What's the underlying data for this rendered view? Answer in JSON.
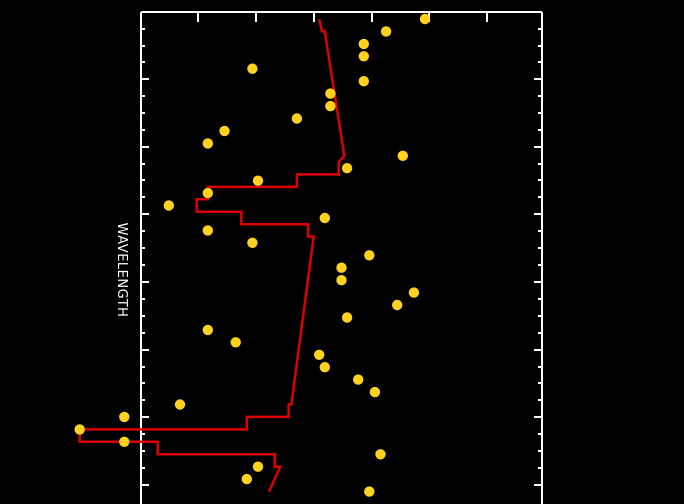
{
  "chart_data": {
    "type": "scatter",
    "orientation": "rotated-90",
    "ylabel": "WAVELENGTH",
    "xlabel": "",
    "title": "",
    "grid": false,
    "colors": {
      "background": "#000000",
      "axes": "#ffffff",
      "line": "#dd0000",
      "points": "#ffd21f"
    },
    "wavelength_range": [
      0,
      39
    ],
    "flux_range": [
      -1.2,
      6
    ],
    "series": [
      {
        "kind": "points",
        "x": [
          0,
          1,
          2,
          3,
          4,
          5,
          6,
          7,
          8,
          9,
          10,
          11,
          12,
          13,
          14,
          15,
          16,
          17,
          18,
          19,
          20,
          21,
          22,
          23,
          24,
          25,
          26,
          27,
          28,
          29,
          30,
          31,
          32,
          33,
          34,
          35,
          36,
          37,
          38
        ],
        "y": [
          3.9,
          3.2,
          2.8,
          2.8,
          0.8,
          2.8,
          2.2,
          2.2,
          1.6,
          0.3,
          0.0,
          3.5,
          2.5,
          0.9,
          0.0,
          -0.7,
          2.1,
          0.0,
          0.8,
          2.9,
          2.4,
          2.4,
          3.7,
          3.4,
          2.5,
          0.0,
          0.5,
          2.0,
          2.1,
          2.7,
          3.0,
          -0.5,
          -1.5,
          -2.3,
          -1.5,
          3.1,
          0.9,
          0.7,
          2.9
        ]
      },
      {
        "kind": "step-line",
        "segments": [
          {
            "x": [
              0,
              1
            ],
            "y": [
              2.0,
              2.05
            ]
          },
          {
            "x": [
              1,
              11
            ],
            "y": [
              2.1,
              2.45
            ]
          },
          {
            "x": [
              11.5,
              12.5
            ],
            "y": [
              2.35,
              2.35
            ]
          },
          {
            "x": [
              12.5,
              13.5
            ],
            "y": [
              1.6,
              1.6
            ]
          },
          {
            "x": [
              13.5,
              14.5
            ],
            "y": [
              0.0,
              0.0
            ]
          },
          {
            "x": [
              14.5,
              15.5
            ],
            "y": [
              -0.2,
              -0.2
            ]
          },
          {
            "x": [
              15.5,
              16.5
            ],
            "y": [
              0.6,
              0.6
            ]
          },
          {
            "x": [
              16.5,
              17.5
            ],
            "y": [
              1.8,
              1.8
            ]
          },
          {
            "x": [
              17.5,
              31
            ],
            "y": [
              1.9,
              1.5
            ]
          },
          {
            "x": [
              31,
              32
            ],
            "y": [
              1.45,
              1.45
            ]
          },
          {
            "x": [
              32,
              33
            ],
            "y": [
              0.7,
              0.7
            ]
          },
          {
            "x": [
              33,
              34
            ],
            "y": [
              -2.3,
              -2.3
            ]
          },
          {
            "x": [
              34,
              35
            ],
            "y": [
              -0.9,
              -0.9
            ]
          },
          {
            "x": [
              35,
              36
            ],
            "y": [
              1.2,
              1.2
            ]
          },
          {
            "x": [
              36,
              38
            ],
            "y": [
              1.3,
              1.1
            ]
          }
        ]
      }
    ]
  }
}
